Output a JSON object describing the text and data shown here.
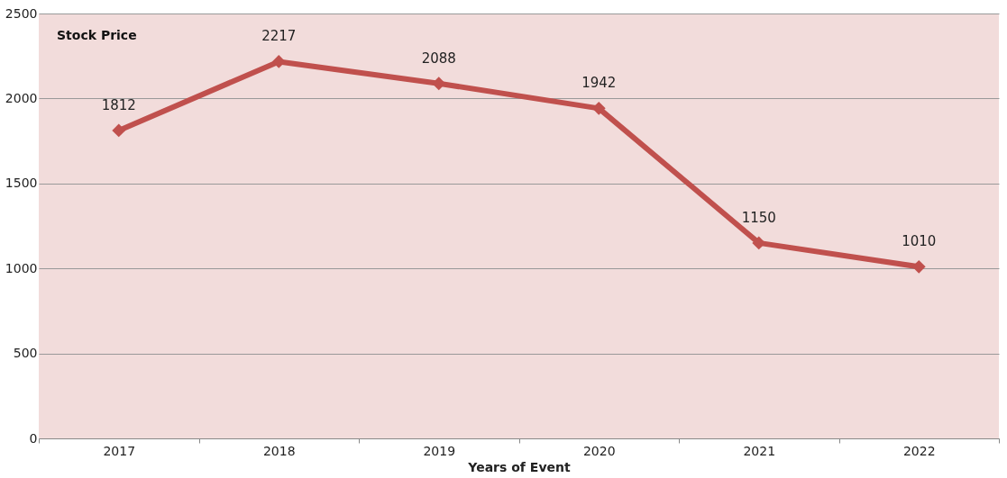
{
  "chart_data": {
    "type": "line",
    "title": "Stock Price",
    "xlabel": "Years of Event",
    "categories": [
      "2017",
      "2018",
      "2019",
      "2020",
      "2021",
      "2022"
    ],
    "series": [
      {
        "color": "#c0504d",
        "values": [
          1812,
          2217,
          2088,
          1942,
          1150,
          1010
        ]
      }
    ],
    "ylim": [
      0,
      2500
    ],
    "yticks": [
      0,
      500,
      1000,
      1500,
      2000,
      2500
    ],
    "grid": "y",
    "marker": "diamond",
    "line_style": "solid",
    "data_labels": true
  }
}
